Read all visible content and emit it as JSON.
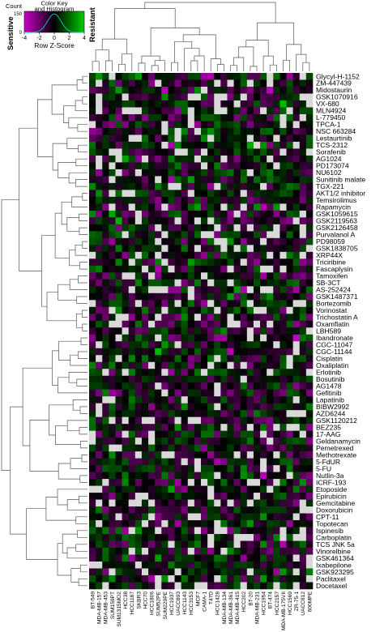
{
  "chart_data": {
    "type": "heatmap",
    "title": "",
    "color_key": {
      "title_line1": "Color Key",
      "title_line2": "and Histogram",
      "count_label": "Count",
      "xlabel": "Row Z-Score",
      "x_ticks": [
        "-4",
        "-2",
        "0",
        "2",
        "4"
      ],
      "y_ticks": [
        "0",
        "150"
      ],
      "x_range": [
        -4,
        4
      ],
      "low_label": "Sensitive",
      "high_label": "Resistant",
      "colors": {
        "low": "#cc00cc",
        "mid": "#000000",
        "high": "#00cc00",
        "missing": "#d9d9d9",
        "low_label_color": "#7a2a9a",
        "high_label_color": "#2ca02c"
      }
    },
    "rows": [
      "Glycyl-H-1152",
      "ZM-447439",
      "Midostaurin",
      "GSK1070916",
      "VX-680",
      "MLN4924",
      "L-779450",
      "TPCA-1",
      "NSC 663284",
      "Lestaurtinib",
      "TCS-2312",
      "Sorafenib",
      "AG1024",
      "PD173074",
      "NU6102",
      "Sunitinib malate",
      "TGX-221",
      "AKT1/2 inhibitor",
      "Temsirolimus",
      "Rapamycin",
      "GSK1059615",
      "GSK2119563",
      "GSK2126458",
      "Purvalanol A",
      "PD98059",
      "GSK1838705",
      "XRP44X",
      "Triciribine",
      "Fascaplysin",
      "Tamoxifen",
      "SB-3CT",
      "AS-252424",
      "GSK1487371",
      "Bortezomib",
      "Vorinostat",
      "Trichostatin A",
      "Oxamflatin",
      "LBH589",
      "Ibandronate",
      "CGC-11047",
      "CGC-11144",
      "Cisplatin",
      "Oxaliplatin",
      "Erlotinib",
      "Bosutinib",
      "AG1478",
      "Gefitinib",
      "Lapatinib",
      "BIBW2992",
      "AZD6244",
      "GSK1120212",
      "BEZ235",
      "17-AAG",
      "Geldanamycin",
      "Pemetrexed",
      "Methotrexate",
      "5-FdUR",
      "5-FU",
      "Nutlin-3a",
      "ICRF-193",
      "Etoposide",
      "Epirubicin",
      "Gemcitabine",
      "Doxorubicin",
      "CPT-11",
      "Topotecan",
      "Ispinesib",
      "Carboplatin",
      "TCS JNK 5a",
      "Vinorelbine",
      "GSK461364",
      "Ixabepilone",
      "GSK923295",
      "Paclitaxel",
      "Docetaxel"
    ],
    "highlight_rows": [
      "ZM-447439",
      "Midostaurin"
    ],
    "highlight_color": "#ff0000",
    "columns": [
      "BT-549",
      "MDA-MB-157",
      "MDA-MB-453",
      "SUM159PT",
      "SUM1315MO2",
      "HCC38",
      "HCC1187",
      "SKBR3",
      "HCC70",
      "HCC1806",
      "SUM52PE",
      "SUM229PE",
      "HCC1937",
      "UACC893",
      "HCC1143",
      "HCC3153",
      "MCF7",
      "CAMA-1",
      "T47D",
      "HCC1428",
      "MDA-MB-134",
      "MDA-MB-361",
      "MDA-MB-415",
      "HCC202",
      "BT-20",
      "MDA-MB-231",
      "HCC1954",
      "BT-474",
      "HCC2157",
      "MDA-MB-175VII",
      "HCC1569",
      "ZR-75-1",
      "UACC812",
      "600MPE"
    ],
    "missing_fraction": 0.12
  }
}
